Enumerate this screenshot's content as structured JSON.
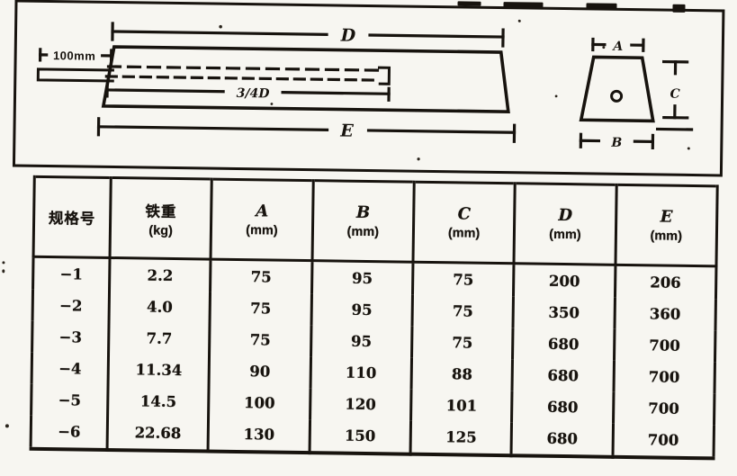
{
  "paper": {
    "background": "#f7f6f1",
    "ink": "#17130e"
  },
  "figure": {
    "tang_dim_label": "100mm",
    "length_dim_label": "D",
    "hole_dim_label": "3/4D",
    "overall_dim_label": "E",
    "section_top_label": "A",
    "section_bottom_label": "B",
    "section_height_label": "C"
  },
  "table": {
    "headers": [
      {
        "title": "规格号",
        "sub": "",
        "italic": false
      },
      {
        "title": "铁重",
        "sub": "(kg)",
        "italic": false
      },
      {
        "title": "A",
        "sub": "(mm)",
        "italic": true
      },
      {
        "title": "B",
        "sub": "(mm)",
        "italic": true
      },
      {
        "title": "C",
        "sub": "(mm)",
        "italic": true
      },
      {
        "title": "D",
        "sub": "(mm)",
        "italic": true
      },
      {
        "title": "E",
        "sub": "(mm)",
        "italic": true
      }
    ],
    "rows": [
      [
        "−1",
        "2.2",
        "75",
        "95",
        "75",
        "200",
        "206"
      ],
      [
        "−2",
        "4.0",
        "75",
        "95",
        "75",
        "350",
        "360"
      ],
      [
        "−3",
        "7.7",
        "75",
        "95",
        "75",
        "680",
        "700"
      ],
      [
        "−4",
        "11.34",
        "90",
        "110",
        "88",
        "680",
        "700"
      ],
      [
        "−5",
        "14.5",
        "100",
        "120",
        "101",
        "680",
        "700"
      ],
      [
        "−6",
        "22.68",
        "130",
        "150",
        "125",
        "680",
        "700"
      ]
    ]
  }
}
